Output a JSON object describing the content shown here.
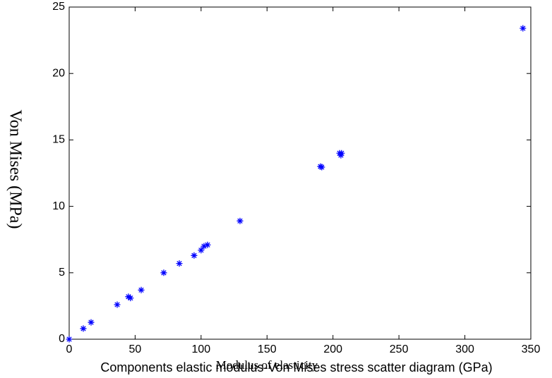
{
  "chart_data": {
    "type": "scatter",
    "caption": "Components elastic modulus-Von Mises stress scatter diagram (GPa)",
    "xlabel": "Modulus of elasticity",
    "ylabel": "Von Mises (MPa)",
    "marker": "asterisk",
    "color": "#0000ff",
    "xlim": [
      0,
      350
    ],
    "xticks": [
      0,
      50,
      100,
      150,
      200,
      250,
      300,
      350
    ],
    "ylim": [
      0,
      25
    ],
    "yticks": [
      0,
      5,
      10,
      15,
      20,
      25
    ],
    "x": [
      0,
      10.7,
      16.6,
      36.4,
      44.9,
      46.5,
      54.6,
      71.7,
      83.5,
      94.7,
      100,
      102.2,
      104.9,
      129.5,
      190.5,
      191.5,
      205,
      206.5,
      206,
      344
    ],
    "y": [
      0,
      0.8,
      1.27,
      2.6,
      3.2,
      3.1,
      3.7,
      5.0,
      5.7,
      6.3,
      6.7,
      7.0,
      7.1,
      8.9,
      13.0,
      12.95,
      14.0,
      14.0,
      13.85,
      23.4
    ]
  }
}
